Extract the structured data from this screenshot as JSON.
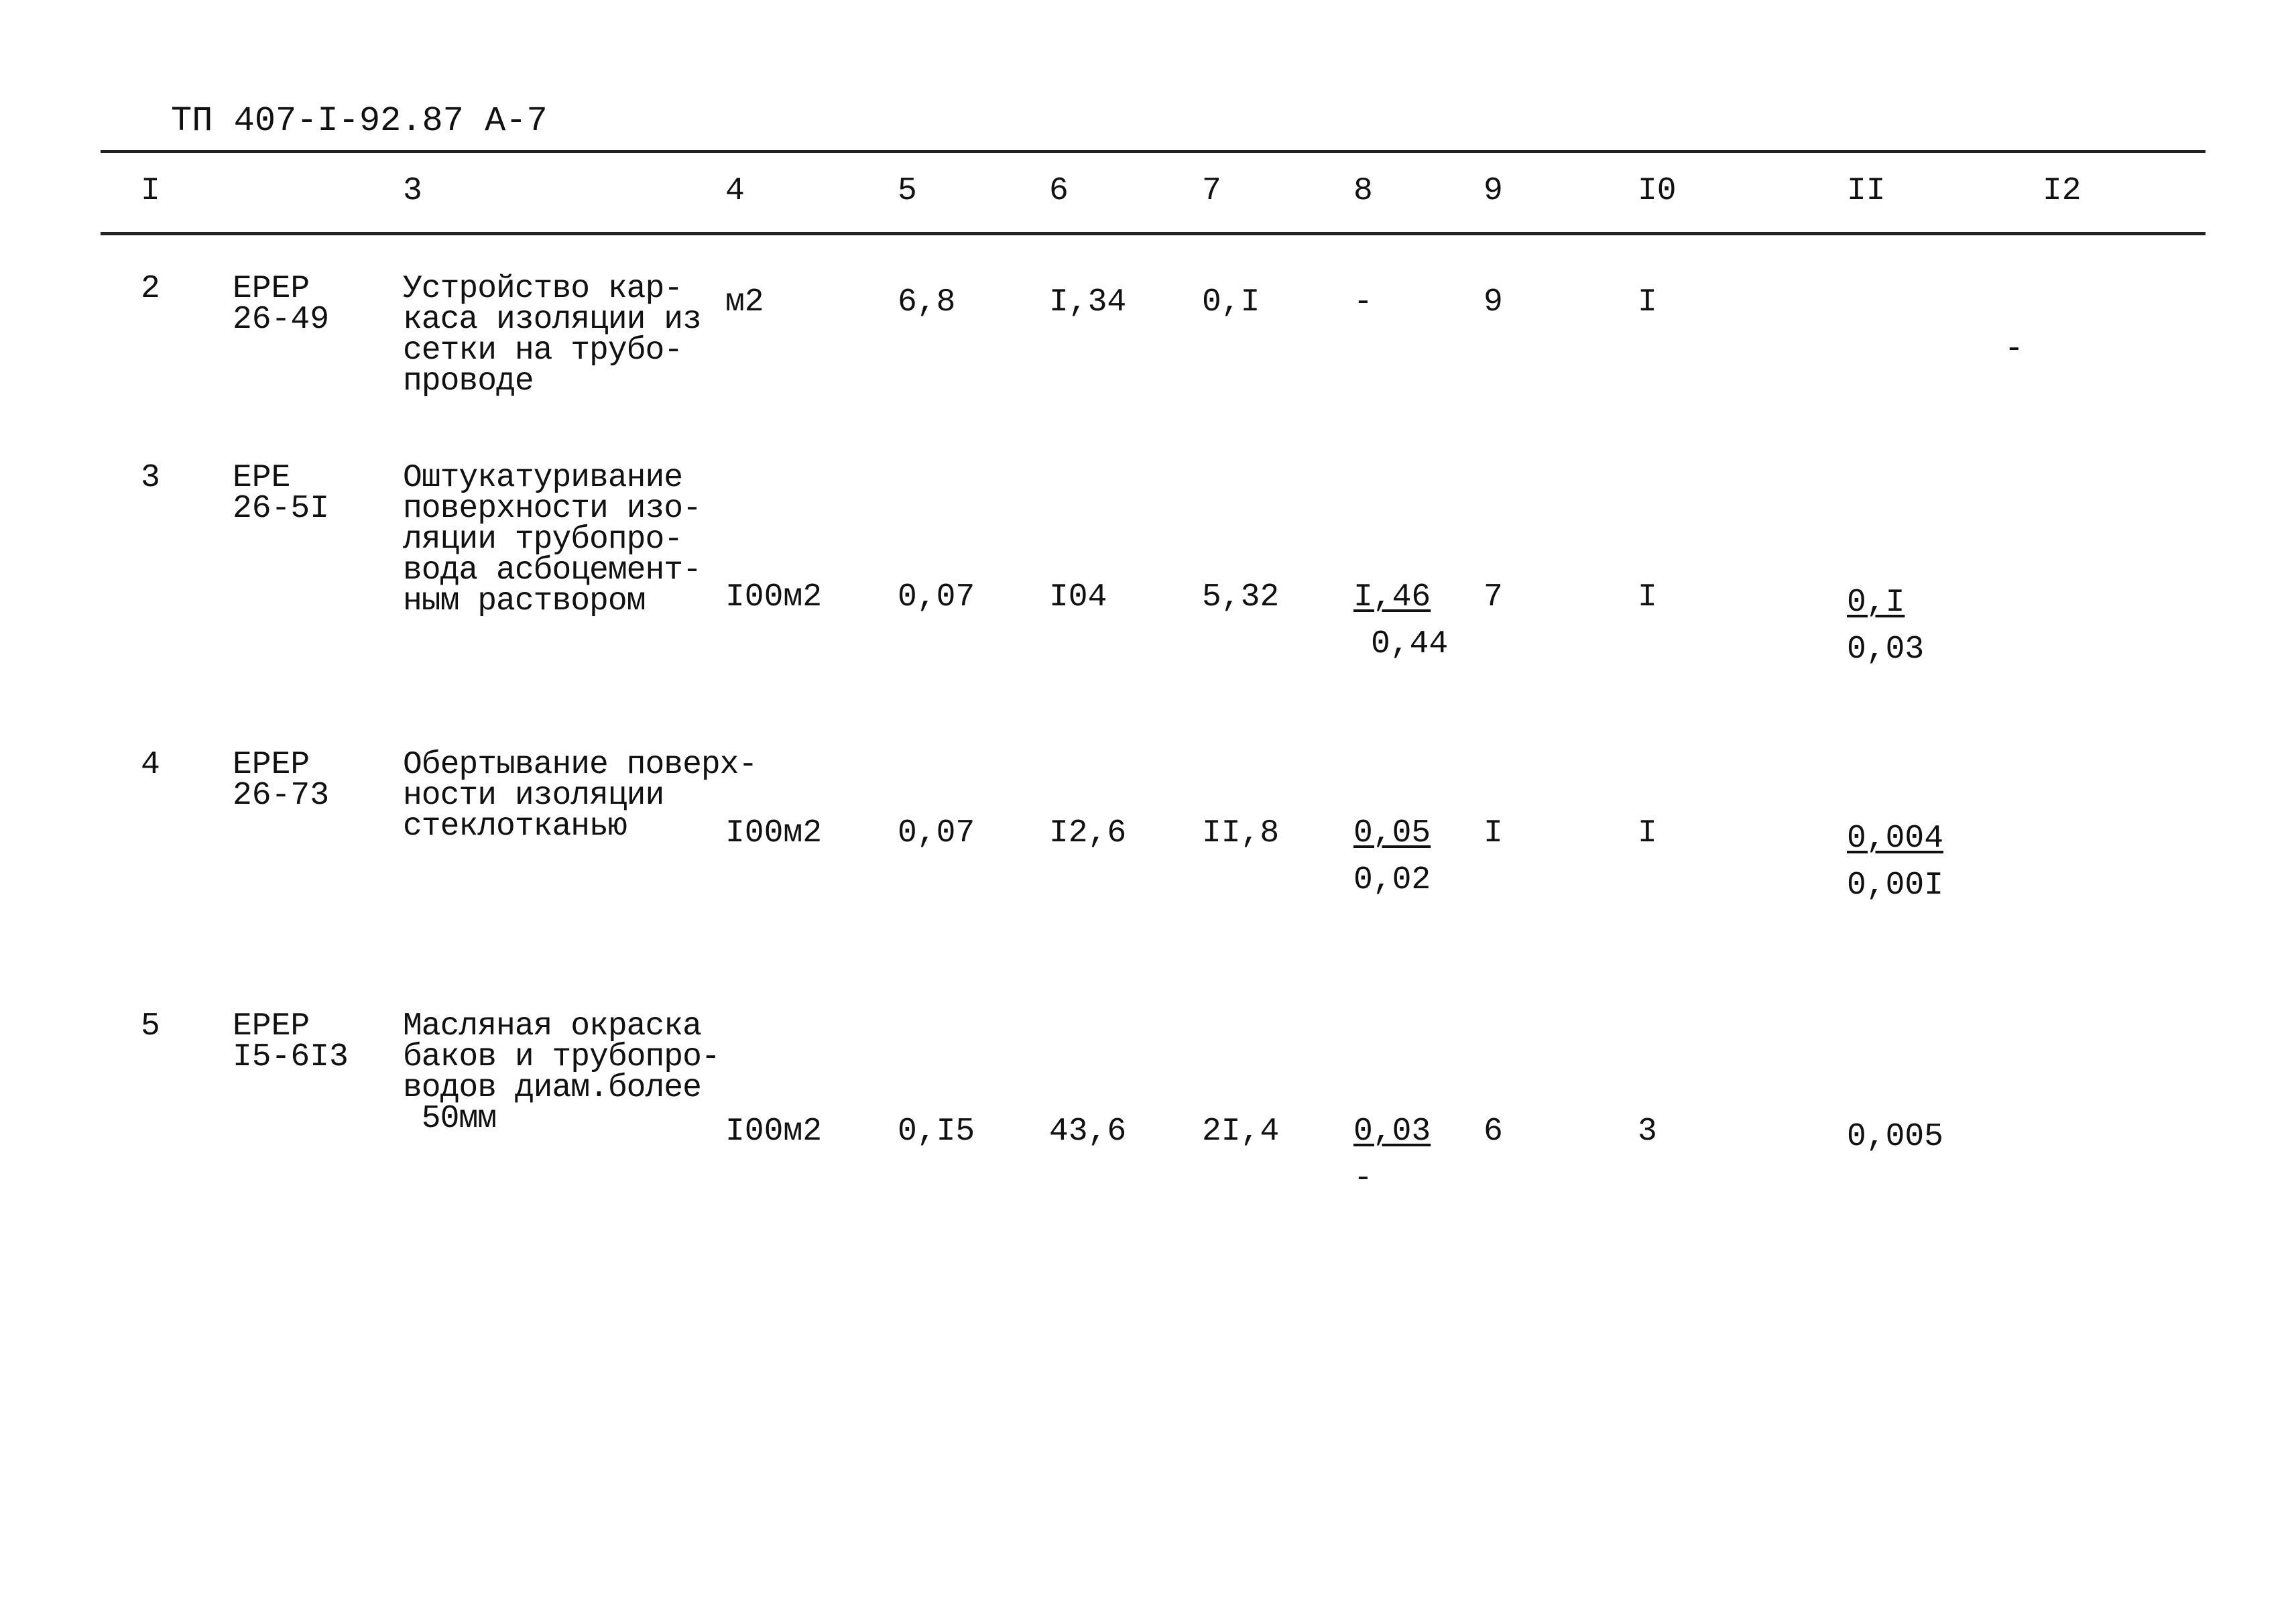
{
  "document": {
    "title": "ТП 407-I-92.87 А-7",
    "column_headers": [
      "I",
      "",
      "3",
      "4",
      "5",
      "6",
      "7",
      "8",
      "9",
      "I0",
      "II",
      "I2"
    ],
    "rows": [
      {
        "no": "2",
        "code": [
          "ЕРЕР",
          "26-49"
        ],
        "description": [
          "Устройство кар-",
          "каса изоляции из",
          "сетки на трубо-",
          "проводе"
        ],
        "unit": "м2",
        "c5": "6,8",
        "c6": "I,34",
        "c7": "0,I",
        "c8_top": "-",
        "c8_bottom": "",
        "c9": "9",
        "c10": "I",
        "c11_top": "",
        "c11_bottom": "",
        "c12": "-"
      },
      {
        "no": "3",
        "code": [
          "ЕРЕ",
          "26-5I"
        ],
        "description": [
          "Оштукатуривание",
          "поверхности изо-",
          "ляции трубопро-",
          "вода асбоцемент-",
          "ным раствором"
        ],
        "unit": "I00м2",
        "c5": "0,07",
        "c6": "I04",
        "c7": "5,32",
        "c8_top": "I,46",
        "c8_bottom": "0,44",
        "c9": "7",
        "c10": "I",
        "c11_top": "0,I",
        "c11_bottom": "0,03",
        "c12": ""
      },
      {
        "no": "4",
        "code": [
          "ЕРЕР",
          "26-73"
        ],
        "description": [
          "Обертывание поверх-",
          "ности изоляции",
          "стеклотканью"
        ],
        "unit": "I00м2",
        "c5": "0,07",
        "c6": "I2,6",
        "c7": "II,8",
        "c8_top": "0,05",
        "c8_bottom": "0,02",
        "c9": "I",
        "c10": "I",
        "c11_top": "0,004",
        "c11_bottom": "0,00I",
        "c12": ""
      },
      {
        "no": "5",
        "code": [
          "ЕРЕР",
          "I5-6I3"
        ],
        "description": [
          "Масляная окраска",
          "баков и трубопро-",
          "водов диам.более",
          " 50мм"
        ],
        "unit": "I00м2",
        "c5": "0,I5",
        "c6": "43,6",
        "c7": "2I,4",
        "c8_top": "0,03",
        "c8_bottom": "-",
        "c9": "6",
        "c10": "3",
        "c11_top": "0,005",
        "c11_bottom": "",
        "c12": ""
      }
    ]
  }
}
